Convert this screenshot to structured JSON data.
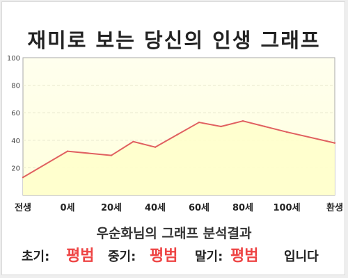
{
  "title": "재미로 보는 당신의 인생 그래프",
  "subtitle": "우순화님의 그래프 분석결과",
  "result": {
    "early_label": "초기:",
    "early_value": "평범",
    "mid_label": "중기:",
    "mid_value": "평범",
    "late_label": "말기:",
    "late_value": "평범",
    "suffix": "입니다"
  },
  "colors": {
    "line": "#e06060",
    "fill": "#ffffcc",
    "accent": "#ee4444"
  },
  "chart_data": {
    "type": "area",
    "title": "재미로 보는 당신의 인생 그래프",
    "xlabel": "",
    "ylabel": "",
    "x_ticks": [
      "전생",
      "0세",
      "20세",
      "40세",
      "60세",
      "80세",
      "100세",
      "환생"
    ],
    "y_ticks": [
      "20",
      "40",
      "60",
      "80",
      "100"
    ],
    "ylim": [
      0,
      100
    ],
    "grid": true,
    "series": [
      {
        "x": [
          "전생",
          "0세",
          "20세",
          "30세",
          "40세",
          "50세",
          "60세",
          "70세",
          "80세",
          "90세",
          "100세",
          "환생"
        ],
        "values": [
          13,
          32,
          29,
          39,
          35,
          44,
          53,
          50,
          54,
          50,
          46,
          38
        ]
      }
    ]
  }
}
